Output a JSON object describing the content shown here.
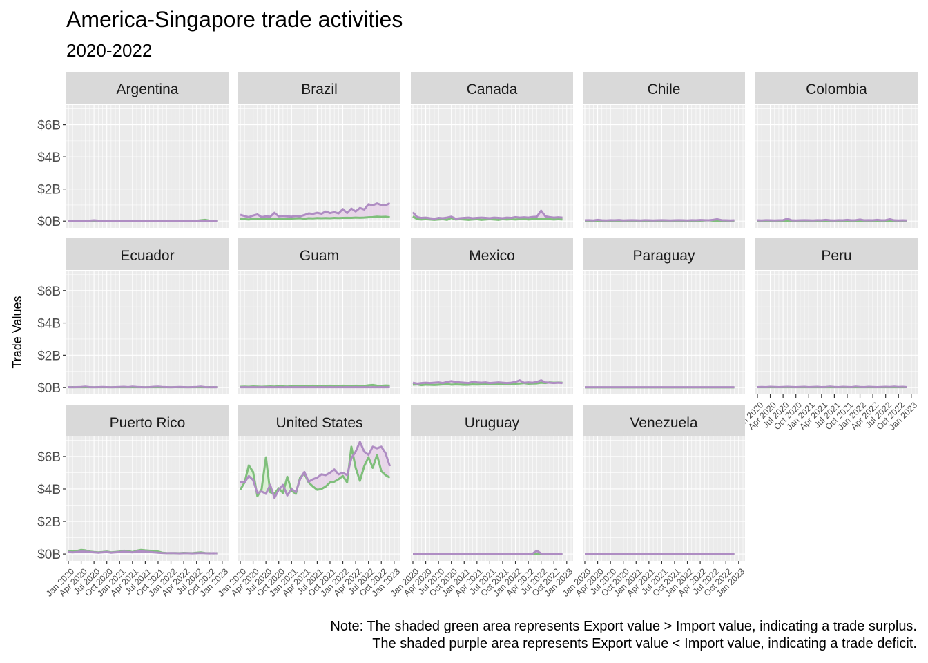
{
  "chart_data": {
    "type": "line",
    "facet": "small-multiples",
    "title": "America-Singapore trade activities",
    "subtitle": "2020-2022",
    "ylabel": "Trade Values",
    "xlabel": "",
    "ylim_billions": [
      0,
      7
    ],
    "y_ticks": [
      "$0B",
      "$2B",
      "$4B",
      "$6B"
    ],
    "y_tick_values": [
      0,
      2,
      4,
      6
    ],
    "x_ticks": [
      "Jan 2020",
      "Apr 2020",
      "Jul 2020",
      "Oct 2020",
      "Jan 2021",
      "Apr 2021",
      "Jul 2021",
      "Oct 2021",
      "Jan 2022",
      "Apr 2022",
      "Jul 2022",
      "Oct 2022",
      "Jan 2023"
    ],
    "x_tick_month_index": [
      0,
      3,
      6,
      9,
      12,
      15,
      18,
      21,
      24,
      27,
      30,
      33,
      36
    ],
    "months": [
      "Jan 2020",
      "Feb 2020",
      "Mar 2020",
      "Apr 2020",
      "May 2020",
      "Jun 2020",
      "Jul 2020",
      "Aug 2020",
      "Sep 2020",
      "Oct 2020",
      "Nov 2020",
      "Dec 2020",
      "Jan 2021",
      "Feb 2021",
      "Mar 2021",
      "Apr 2021",
      "May 2021",
      "Jun 2021",
      "Jul 2021",
      "Aug 2021",
      "Sep 2021",
      "Oct 2021",
      "Nov 2021",
      "Dec 2021",
      "Jan 2022",
      "Feb 2022",
      "Mar 2022",
      "Apr 2022",
      "May 2022",
      "Jun 2022",
      "Jul 2022",
      "Aug 2022",
      "Sep 2022",
      "Oct 2022",
      "Nov 2022",
      "Dec 2022"
    ],
    "colors": {
      "export": "#7fbf7b",
      "import": "#af8dc3",
      "surplus_fill": "#d9f0d3",
      "deficit_fill": "#e7d4e8"
    },
    "panels": [
      {
        "name": "Argentina",
        "export": [
          0.02,
          0.01,
          0.02,
          0.01,
          0.01,
          0.02,
          0.02,
          0.01,
          0.02,
          0.02,
          0.01,
          0.02,
          0.02,
          0.01,
          0.02,
          0.02,
          0.03,
          0.02,
          0.02,
          0.02,
          0.03,
          0.02,
          0.02,
          0.03,
          0.02,
          0.02,
          0.03,
          0.02,
          0.02,
          0.03,
          0.02,
          0.05,
          0.08,
          0.03,
          0.02,
          0.02
        ],
        "import": [
          0.03,
          0.02,
          0.03,
          0.02,
          0.02,
          0.03,
          0.05,
          0.03,
          0.02,
          0.03,
          0.02,
          0.03,
          0.03,
          0.02,
          0.03,
          0.02,
          0.03,
          0.03,
          0.02,
          0.03,
          0.02,
          0.03,
          0.02,
          0.03,
          0.02,
          0.03,
          0.02,
          0.03,
          0.02,
          0.03,
          0.02,
          0.03,
          0.03,
          0.02,
          0.03,
          0.02
        ]
      },
      {
        "name": "Brazil",
        "export": [
          0.15,
          0.12,
          0.1,
          0.14,
          0.16,
          0.13,
          0.15,
          0.14,
          0.15,
          0.16,
          0.14,
          0.15,
          0.16,
          0.17,
          0.18,
          0.15,
          0.18,
          0.17,
          0.19,
          0.18,
          0.19,
          0.18,
          0.2,
          0.19,
          0.2,
          0.21,
          0.2,
          0.22,
          0.21,
          0.22,
          0.24,
          0.25,
          0.28,
          0.26,
          0.27,
          0.24
        ],
        "import": [
          0.4,
          0.32,
          0.25,
          0.35,
          0.42,
          0.25,
          0.3,
          0.28,
          0.52,
          0.3,
          0.32,
          0.3,
          0.28,
          0.32,
          0.3,
          0.38,
          0.48,
          0.45,
          0.52,
          0.46,
          0.6,
          0.5,
          0.56,
          0.48,
          0.75,
          0.5,
          0.78,
          0.6,
          0.82,
          0.72,
          1.05,
          0.98,
          1.1,
          1.0,
          0.98,
          1.12
        ]
      },
      {
        "name": "Canada",
        "export": [
          0.3,
          0.12,
          0.1,
          0.12,
          0.1,
          0.08,
          0.1,
          0.12,
          0.08,
          0.2,
          0.1,
          0.12,
          0.1,
          0.08,
          0.1,
          0.12,
          0.08,
          0.1,
          0.12,
          0.1,
          0.08,
          0.12,
          0.1,
          0.12,
          0.1,
          0.12,
          0.14,
          0.1,
          0.12,
          0.15,
          0.12,
          0.14,
          0.12,
          0.1,
          0.12,
          0.1
        ],
        "import": [
          0.55,
          0.25,
          0.2,
          0.22,
          0.18,
          0.15,
          0.2,
          0.18,
          0.22,
          0.28,
          0.15,
          0.18,
          0.2,
          0.22,
          0.18,
          0.2,
          0.22,
          0.2,
          0.18,
          0.22,
          0.2,
          0.18,
          0.22,
          0.2,
          0.25,
          0.22,
          0.24,
          0.22,
          0.26,
          0.28,
          0.65,
          0.3,
          0.25,
          0.22,
          0.24,
          0.22
        ]
      },
      {
        "name": "Chile",
        "export": [
          0.02,
          0.03,
          0.02,
          0.03,
          0.02,
          0.03,
          0.02,
          0.03,
          0.02,
          0.03,
          0.02,
          0.03,
          0.02,
          0.03,
          0.02,
          0.03,
          0.02,
          0.03,
          0.02,
          0.03,
          0.02,
          0.03,
          0.02,
          0.03,
          0.02,
          0.03,
          0.02,
          0.03,
          0.04,
          0.05,
          0.03,
          0.02,
          0.03,
          0.02,
          0.03,
          0.02
        ],
        "import": [
          0.05,
          0.06,
          0.04,
          0.08,
          0.05,
          0.04,
          0.06,
          0.05,
          0.07,
          0.04,
          0.05,
          0.06,
          0.05,
          0.04,
          0.06,
          0.05,
          0.04,
          0.05,
          0.06,
          0.05,
          0.04,
          0.05,
          0.06,
          0.05,
          0.04,
          0.06,
          0.05,
          0.07,
          0.06,
          0.05,
          0.08,
          0.12,
          0.06,
          0.05,
          0.04,
          0.05
        ]
      },
      {
        "name": "Colombia",
        "export": [
          0.02,
          0.03,
          0.02,
          0.03,
          0.02,
          0.03,
          0.02,
          0.03,
          0.02,
          0.03,
          0.02,
          0.03,
          0.02,
          0.03,
          0.02,
          0.03,
          0.02,
          0.03,
          0.02,
          0.03,
          0.02,
          0.03,
          0.02,
          0.03,
          0.02,
          0.03,
          0.02,
          0.03,
          0.02,
          0.03,
          0.02,
          0.03,
          0.02,
          0.03,
          0.02,
          0.03
        ],
        "import": [
          0.05,
          0.04,
          0.06,
          0.05,
          0.04,
          0.05,
          0.06,
          0.15,
          0.05,
          0.04,
          0.05,
          0.06,
          0.05,
          0.04,
          0.06,
          0.05,
          0.08,
          0.05,
          0.04,
          0.06,
          0.05,
          0.08,
          0.05,
          0.06,
          0.1,
          0.05,
          0.06,
          0.05,
          0.08,
          0.05,
          0.06,
          0.12,
          0.05,
          0.04,
          0.05,
          0.04
        ]
      },
      {
        "name": "Ecuador",
        "export": [
          0.02,
          0.03,
          0.02,
          0.03,
          0.02,
          0.03,
          0.02,
          0.03,
          0.02,
          0.03,
          0.02,
          0.03,
          0.02,
          0.03,
          0.02,
          0.03,
          0.02,
          0.03,
          0.02,
          0.03,
          0.02,
          0.03,
          0.02,
          0.03,
          0.02,
          0.03,
          0.02,
          0.03,
          0.02,
          0.03,
          0.02,
          0.03,
          0.02,
          0.03,
          0.02,
          0.03
        ],
        "import": [
          0.03,
          0.02,
          0.03,
          0.04,
          0.06,
          0.03,
          0.02,
          0.03,
          0.04,
          0.03,
          0.02,
          0.03,
          0.04,
          0.05,
          0.03,
          0.06,
          0.04,
          0.03,
          0.02,
          0.03,
          0.05,
          0.06,
          0.04,
          0.03,
          0.02,
          0.03,
          0.04,
          0.03,
          0.02,
          0.03,
          0.04,
          0.06,
          0.03,
          0.02,
          0.03,
          0.02
        ]
      },
      {
        "name": "Guam",
        "export": [
          0.05,
          0.06,
          0.05,
          0.07,
          0.06,
          0.05,
          0.06,
          0.07,
          0.06,
          0.08,
          0.07,
          0.06,
          0.08,
          0.09,
          0.1,
          0.08,
          0.1,
          0.12,
          0.1,
          0.11,
          0.1,
          0.12,
          0.11,
          0.1,
          0.12,
          0.11,
          0.1,
          0.12,
          0.11,
          0.1,
          0.14,
          0.16,
          0.12,
          0.11,
          0.13,
          0.12
        ],
        "import": [
          0.02,
          0.03,
          0.02,
          0.03,
          0.02,
          0.03,
          0.02,
          0.03,
          0.02,
          0.03,
          0.02,
          0.03,
          0.02,
          0.03,
          0.02,
          0.03,
          0.02,
          0.03,
          0.02,
          0.03,
          0.02,
          0.03,
          0.02,
          0.03,
          0.02,
          0.03,
          0.02,
          0.03,
          0.02,
          0.03,
          0.02,
          0.03,
          0.02,
          0.03,
          0.02,
          0.03
        ]
      },
      {
        "name": "Mexico",
        "export": [
          0.18,
          0.2,
          0.15,
          0.18,
          0.17,
          0.16,
          0.18,
          0.2,
          0.22,
          0.18,
          0.2,
          0.19,
          0.17,
          0.18,
          0.2,
          0.19,
          0.2,
          0.22,
          0.21,
          0.2,
          0.22,
          0.21,
          0.23,
          0.22,
          0.24,
          0.25,
          0.28,
          0.24,
          0.25,
          0.26,
          0.3,
          0.28,
          0.32,
          0.3,
          0.31,
          0.3
        ],
        "import": [
          0.3,
          0.25,
          0.28,
          0.3,
          0.28,
          0.3,
          0.32,
          0.28,
          0.35,
          0.4,
          0.35,
          0.32,
          0.3,
          0.28,
          0.35,
          0.32,
          0.3,
          0.32,
          0.28,
          0.3,
          0.32,
          0.3,
          0.28,
          0.3,
          0.35,
          0.45,
          0.3,
          0.32,
          0.3,
          0.35,
          0.45,
          0.32,
          0.3,
          0.28,
          0.3,
          0.28
        ]
      },
      {
        "name": "Paraguay",
        "export": [
          0.01,
          0.01,
          0.01,
          0.01,
          0.01,
          0.01,
          0.01,
          0.01,
          0.01,
          0.01,
          0.01,
          0.01,
          0.01,
          0.01,
          0.01,
          0.01,
          0.01,
          0.01,
          0.01,
          0.01,
          0.01,
          0.01,
          0.01,
          0.01,
          0.01,
          0.01,
          0.01,
          0.01,
          0.01,
          0.01,
          0.01,
          0.01,
          0.01,
          0.01,
          0.01,
          0.01
        ],
        "import": [
          0.02,
          0.02,
          0.02,
          0.02,
          0.02,
          0.02,
          0.02,
          0.02,
          0.02,
          0.02,
          0.02,
          0.02,
          0.02,
          0.02,
          0.02,
          0.02,
          0.02,
          0.02,
          0.02,
          0.02,
          0.02,
          0.02,
          0.02,
          0.02,
          0.02,
          0.02,
          0.02,
          0.02,
          0.02,
          0.02,
          0.02,
          0.02,
          0.02,
          0.02,
          0.02,
          0.02
        ]
      },
      {
        "name": "Peru",
        "export": [
          0.02,
          0.03,
          0.02,
          0.03,
          0.02,
          0.03,
          0.02,
          0.03,
          0.02,
          0.03,
          0.02,
          0.03,
          0.02,
          0.03,
          0.02,
          0.03,
          0.02,
          0.03,
          0.02,
          0.03,
          0.02,
          0.03,
          0.02,
          0.03,
          0.02,
          0.03,
          0.02,
          0.03,
          0.02,
          0.03,
          0.02,
          0.03,
          0.02,
          0.03,
          0.02,
          0.03
        ],
        "import": [
          0.03,
          0.04,
          0.03,
          0.05,
          0.04,
          0.03,
          0.04,
          0.05,
          0.04,
          0.03,
          0.04,
          0.05,
          0.03,
          0.04,
          0.05,
          0.03,
          0.04,
          0.06,
          0.04,
          0.03,
          0.05,
          0.04,
          0.03,
          0.06,
          0.04,
          0.03,
          0.05,
          0.04,
          0.03,
          0.04,
          0.05,
          0.04,
          0.06,
          0.04,
          0.05,
          0.03
        ]
      },
      {
        "name": "Puerto Rico",
        "export": [
          0.2,
          0.15,
          0.18,
          0.25,
          0.22,
          0.15,
          0.12,
          0.1,
          0.12,
          0.15,
          0.1,
          0.12,
          0.15,
          0.2,
          0.18,
          0.12,
          0.2,
          0.25,
          0.22,
          0.2,
          0.18,
          0.15,
          0.08,
          0.06,
          0.05,
          0.06,
          0.05,
          0.07,
          0.06,
          0.05,
          0.08,
          0.1,
          0.06,
          0.05,
          0.04,
          0.05
        ],
        "import": [
          0.12,
          0.1,
          0.12,
          0.15,
          0.14,
          0.12,
          0.1,
          0.08,
          0.1,
          0.12,
          0.08,
          0.1,
          0.12,
          0.14,
          0.12,
          0.1,
          0.14,
          0.16,
          0.14,
          0.12,
          0.1,
          0.08,
          0.06,
          0.05,
          0.06,
          0.05,
          0.04,
          0.05,
          0.05,
          0.04,
          0.05,
          0.06,
          0.05,
          0.04,
          0.05,
          0.04
        ]
      },
      {
        "name": "United States",
        "export": [
          3.95,
          4.4,
          5.45,
          5.05,
          3.55,
          4.0,
          5.95,
          3.8,
          3.7,
          4.05,
          3.75,
          4.75,
          3.9,
          3.7,
          4.7,
          4.95,
          4.4,
          4.15,
          3.95,
          4.0,
          4.15,
          4.4,
          4.45,
          4.6,
          4.8,
          4.4,
          6.6,
          5.3,
          4.5,
          5.4,
          5.95,
          5.3,
          6.1,
          5.1,
          4.85,
          4.7
        ],
        "import": [
          4.45,
          4.4,
          4.8,
          4.55,
          3.75,
          3.85,
          3.7,
          4.25,
          3.45,
          3.95,
          4.25,
          3.6,
          4.0,
          3.8,
          4.6,
          5.05,
          4.45,
          4.6,
          4.7,
          4.9,
          4.85,
          5.0,
          5.2,
          4.9,
          5.0,
          4.85,
          5.9,
          6.3,
          6.9,
          6.3,
          6.1,
          6.6,
          6.5,
          6.6,
          6.2,
          5.4
        ]
      },
      {
        "name": "Uruguay",
        "export": [
          0.01,
          0.01,
          0.01,
          0.01,
          0.01,
          0.01,
          0.01,
          0.01,
          0.01,
          0.01,
          0.01,
          0.01,
          0.01,
          0.01,
          0.01,
          0.01,
          0.01,
          0.01,
          0.01,
          0.01,
          0.01,
          0.01,
          0.01,
          0.01,
          0.01,
          0.01,
          0.01,
          0.01,
          0.01,
          0.02,
          0.01,
          0.01,
          0.01,
          0.01,
          0.01,
          0.01
        ],
        "import": [
          0.02,
          0.02,
          0.02,
          0.02,
          0.02,
          0.02,
          0.02,
          0.02,
          0.02,
          0.02,
          0.02,
          0.02,
          0.02,
          0.02,
          0.02,
          0.02,
          0.02,
          0.02,
          0.02,
          0.02,
          0.02,
          0.02,
          0.02,
          0.02,
          0.02,
          0.02,
          0.02,
          0.02,
          0.02,
          0.2,
          0.03,
          0.02,
          0.02,
          0.02,
          0.02,
          0.02
        ]
      },
      {
        "name": "Venezuela",
        "export": [
          0.01,
          0.01,
          0.01,
          0.01,
          0.01,
          0.01,
          0.01,
          0.01,
          0.01,
          0.01,
          0.01,
          0.01,
          0.01,
          0.01,
          0.01,
          0.01,
          0.01,
          0.01,
          0.01,
          0.01,
          0.01,
          0.01,
          0.01,
          0.01,
          0.01,
          0.01,
          0.01,
          0.01,
          0.01,
          0.01,
          0.01,
          0.01,
          0.01,
          0.01,
          0.01,
          0.01
        ],
        "import": [
          0.02,
          0.02,
          0.02,
          0.02,
          0.02,
          0.02,
          0.02,
          0.02,
          0.02,
          0.02,
          0.02,
          0.02,
          0.02,
          0.02,
          0.02,
          0.02,
          0.02,
          0.02,
          0.02,
          0.02,
          0.02,
          0.02,
          0.02,
          0.02,
          0.02,
          0.02,
          0.02,
          0.02,
          0.02,
          0.02,
          0.02,
          0.02,
          0.02,
          0.02,
          0.02,
          0.02
        ]
      }
    ],
    "notes": [
      "Note: The shaded green area represents Export value > Import value, indicating a trade surplus.",
      "The shaded purple area represents Export value < Import value, indicating a trade deficit."
    ]
  }
}
